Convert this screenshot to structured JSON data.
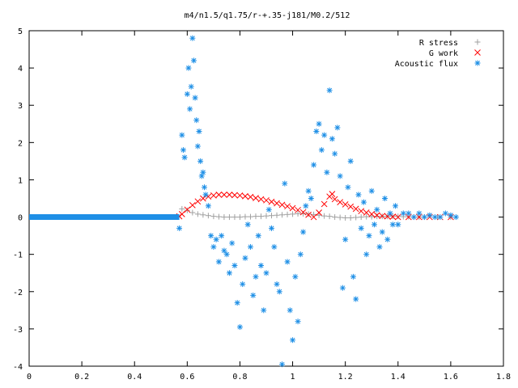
{
  "chart_data": {
    "type": "scatter",
    "title": "m4/n1.5/q1.75/r-+.35-j181/M0.2/512",
    "xlabel": "",
    "ylabel": "",
    "xlim": [
      0,
      1.8
    ],
    "ylim": [
      -4,
      5
    ],
    "xticks": [
      "0",
      "0.2",
      "0.4",
      "0.6",
      "0.8",
      "1",
      "1.2",
      "1.4",
      "1.6",
      "1.8"
    ],
    "yticks": [
      "-4",
      "-3",
      "-2",
      "-1",
      "0",
      "1",
      "2",
      "3",
      "4",
      "5"
    ],
    "grid": false,
    "legend_position": "top-right",
    "series": [
      {
        "name": "R stress",
        "marker": "+",
        "color": "#a0a0a0",
        "points": [
          [
            0.58,
            0.22
          ],
          [
            0.6,
            0.18
          ],
          [
            0.62,
            0.12
          ],
          [
            0.64,
            0.08
          ],
          [
            0.66,
            0.06
          ],
          [
            0.68,
            0.04
          ],
          [
            0.7,
            0.02
          ],
          [
            0.72,
            0.01
          ],
          [
            0.74,
            0.0
          ],
          [
            0.76,
            0.0
          ],
          [
            0.78,
            0.0
          ],
          [
            0.8,
            0.0
          ],
          [
            0.82,
            0.01
          ],
          [
            0.84,
            0.01
          ],
          [
            0.86,
            0.02
          ],
          [
            0.88,
            0.02
          ],
          [
            0.9,
            0.03
          ],
          [
            0.92,
            0.04
          ],
          [
            0.94,
            0.05
          ],
          [
            0.96,
            0.06
          ],
          [
            0.98,
            0.07
          ],
          [
            1.0,
            0.08
          ],
          [
            1.02,
            0.09
          ],
          [
            1.04,
            0.09
          ],
          [
            1.06,
            0.08
          ],
          [
            1.08,
            0.07
          ],
          [
            1.1,
            0.05
          ],
          [
            1.12,
            0.03
          ],
          [
            1.14,
            0.02
          ],
          [
            1.16,
            0.0
          ],
          [
            1.18,
            -0.01
          ],
          [
            1.2,
            -0.02
          ],
          [
            1.22,
            -0.02
          ],
          [
            1.24,
            -0.01
          ],
          [
            1.26,
            0.0
          ],
          [
            1.28,
            0.01
          ],
          [
            1.3,
            0.01
          ],
          [
            1.32,
            0.02
          ],
          [
            1.34,
            0.02
          ],
          [
            1.36,
            0.02
          ],
          [
            1.38,
            0.02
          ],
          [
            1.4,
            0.02
          ],
          [
            1.42,
            0.01
          ],
          [
            1.44,
            0.01
          ],
          [
            1.46,
            0.0
          ],
          [
            1.48,
            0.0
          ],
          [
            1.5,
            0.0
          ],
          [
            1.55,
            0.0
          ],
          [
            1.6,
            0.0
          ]
        ]
      },
      {
        "name": "G work",
        "marker": "x",
        "color": "#ff0000",
        "points": [
          [
            0.57,
            0.02
          ],
          [
            0.58,
            0.08
          ],
          [
            0.6,
            0.2
          ],
          [
            0.62,
            0.32
          ],
          [
            0.64,
            0.42
          ],
          [
            0.66,
            0.5
          ],
          [
            0.68,
            0.55
          ],
          [
            0.7,
            0.58
          ],
          [
            0.72,
            0.6
          ],
          [
            0.74,
            0.6
          ],
          [
            0.76,
            0.6
          ],
          [
            0.78,
            0.59
          ],
          [
            0.8,
            0.58
          ],
          [
            0.82,
            0.56
          ],
          [
            0.84,
            0.54
          ],
          [
            0.86,
            0.51
          ],
          [
            0.88,
            0.48
          ],
          [
            0.9,
            0.45
          ],
          [
            0.92,
            0.41
          ],
          [
            0.94,
            0.37
          ],
          [
            0.96,
            0.33
          ],
          [
            0.98,
            0.29
          ],
          [
            1.0,
            0.24
          ],
          [
            1.02,
            0.19
          ],
          [
            1.04,
            0.13
          ],
          [
            1.06,
            0.06
          ],
          [
            1.08,
            0.0
          ],
          [
            1.1,
            0.12
          ],
          [
            1.12,
            0.35
          ],
          [
            1.14,
            0.55
          ],
          [
            1.15,
            0.62
          ],
          [
            1.16,
            0.48
          ],
          [
            1.18,
            0.4
          ],
          [
            1.2,
            0.34
          ],
          [
            1.22,
            0.28
          ],
          [
            1.24,
            0.22
          ],
          [
            1.26,
            0.16
          ],
          [
            1.28,
            0.12
          ],
          [
            1.3,
            0.08
          ],
          [
            1.32,
            0.05
          ],
          [
            1.34,
            0.03
          ],
          [
            1.36,
            0.02
          ],
          [
            1.38,
            0.01
          ],
          [
            1.4,
            0.0
          ],
          [
            1.44,
            0.0
          ],
          [
            1.48,
            0.0
          ],
          [
            1.52,
            0.0
          ],
          [
            1.56,
            0.0
          ],
          [
            1.6,
            0.0
          ]
        ]
      },
      {
        "name": "Acoustic flux",
        "marker": "*",
        "color": "#1e8fe6",
        "points": [
          [
            0.57,
            -0.3
          ],
          [
            0.58,
            2.2
          ],
          [
            0.585,
            1.8
          ],
          [
            0.59,
            1.6
          ],
          [
            0.6,
            3.3
          ],
          [
            0.605,
            4.0
          ],
          [
            0.61,
            2.9
          ],
          [
            0.615,
            3.5
          ],
          [
            0.62,
            4.8
          ],
          [
            0.625,
            4.2
          ],
          [
            0.63,
            3.2
          ],
          [
            0.635,
            2.6
          ],
          [
            0.64,
            1.9
          ],
          [
            0.645,
            2.3
          ],
          [
            0.65,
            1.5
          ],
          [
            0.655,
            1.1
          ],
          [
            0.66,
            1.2
          ],
          [
            0.665,
            0.8
          ],
          [
            0.67,
            0.6
          ],
          [
            0.68,
            0.3
          ],
          [
            0.69,
            -0.5
          ],
          [
            0.7,
            -0.8
          ],
          [
            0.71,
            -0.6
          ],
          [
            0.72,
            -1.2
          ],
          [
            0.73,
            -0.5
          ],
          [
            0.74,
            -0.9
          ],
          [
            0.75,
            -1.0
          ],
          [
            0.76,
            -1.5
          ],
          [
            0.77,
            -0.7
          ],
          [
            0.78,
            -1.3
          ],
          [
            0.79,
            -2.3
          ],
          [
            0.8,
            -2.95
          ],
          [
            0.81,
            -1.8
          ],
          [
            0.82,
            -1.1
          ],
          [
            0.83,
            -0.2
          ],
          [
            0.84,
            -0.8
          ],
          [
            0.85,
            -2.1
          ],
          [
            0.86,
            -1.6
          ],
          [
            0.87,
            -0.5
          ],
          [
            0.88,
            -1.3
          ],
          [
            0.89,
            -2.5
          ],
          [
            0.9,
            -1.5
          ],
          [
            0.91,
            0.2
          ],
          [
            0.92,
            -0.3
          ],
          [
            0.93,
            -0.8
          ],
          [
            0.94,
            -1.8
          ],
          [
            0.95,
            -2.0
          ],
          [
            0.96,
            -3.95
          ],
          [
            0.97,
            0.9
          ],
          [
            0.98,
            -1.2
          ],
          [
            0.99,
            -2.5
          ],
          [
            1.0,
            -3.3
          ],
          [
            1.01,
            -1.6
          ],
          [
            1.02,
            -2.8
          ],
          [
            1.03,
            -1.0
          ],
          [
            1.04,
            -0.4
          ],
          [
            1.05,
            0.3
          ],
          [
            1.06,
            0.7
          ],
          [
            1.07,
            0.5
          ],
          [
            1.08,
            1.4
          ],
          [
            1.09,
            2.3
          ],
          [
            1.1,
            2.5
          ],
          [
            1.11,
            1.8
          ],
          [
            1.12,
            2.2
          ],
          [
            1.13,
            1.2
          ],
          [
            1.14,
            3.4
          ],
          [
            1.15,
            2.1
          ],
          [
            1.16,
            1.7
          ],
          [
            1.17,
            2.4
          ],
          [
            1.18,
            1.1
          ],
          [
            1.19,
            -1.9
          ],
          [
            1.2,
            -0.6
          ],
          [
            1.21,
            0.8
          ],
          [
            1.22,
            1.5
          ],
          [
            1.23,
            -1.6
          ],
          [
            1.24,
            -2.2
          ],
          [
            1.25,
            0.6
          ],
          [
            1.26,
            -0.3
          ],
          [
            1.27,
            0.4
          ],
          [
            1.28,
            -1.0
          ],
          [
            1.29,
            -0.5
          ],
          [
            1.3,
            0.7
          ],
          [
            1.31,
            -0.2
          ],
          [
            1.32,
            0.2
          ],
          [
            1.33,
            -0.8
          ],
          [
            1.34,
            -0.4
          ],
          [
            1.35,
            0.5
          ],
          [
            1.36,
            -0.6
          ],
          [
            1.37,
            0.1
          ],
          [
            1.38,
            -0.2
          ],
          [
            1.39,
            0.3
          ],
          [
            1.4,
            -0.2
          ],
          [
            1.42,
            0.1
          ],
          [
            1.44,
            0.1
          ],
          [
            1.46,
            0.0
          ],
          [
            1.48,
            0.1
          ],
          [
            1.5,
            0.0
          ],
          [
            1.52,
            0.05
          ],
          [
            1.54,
            0.0
          ],
          [
            1.56,
            0.0
          ],
          [
            1.58,
            0.1
          ],
          [
            1.6,
            0.05
          ],
          [
            1.62,
            0.0
          ]
        ],
        "baseline": {
          "x_from": 0.0,
          "x_to": 0.57,
          "y": 0.0
        }
      }
    ]
  }
}
